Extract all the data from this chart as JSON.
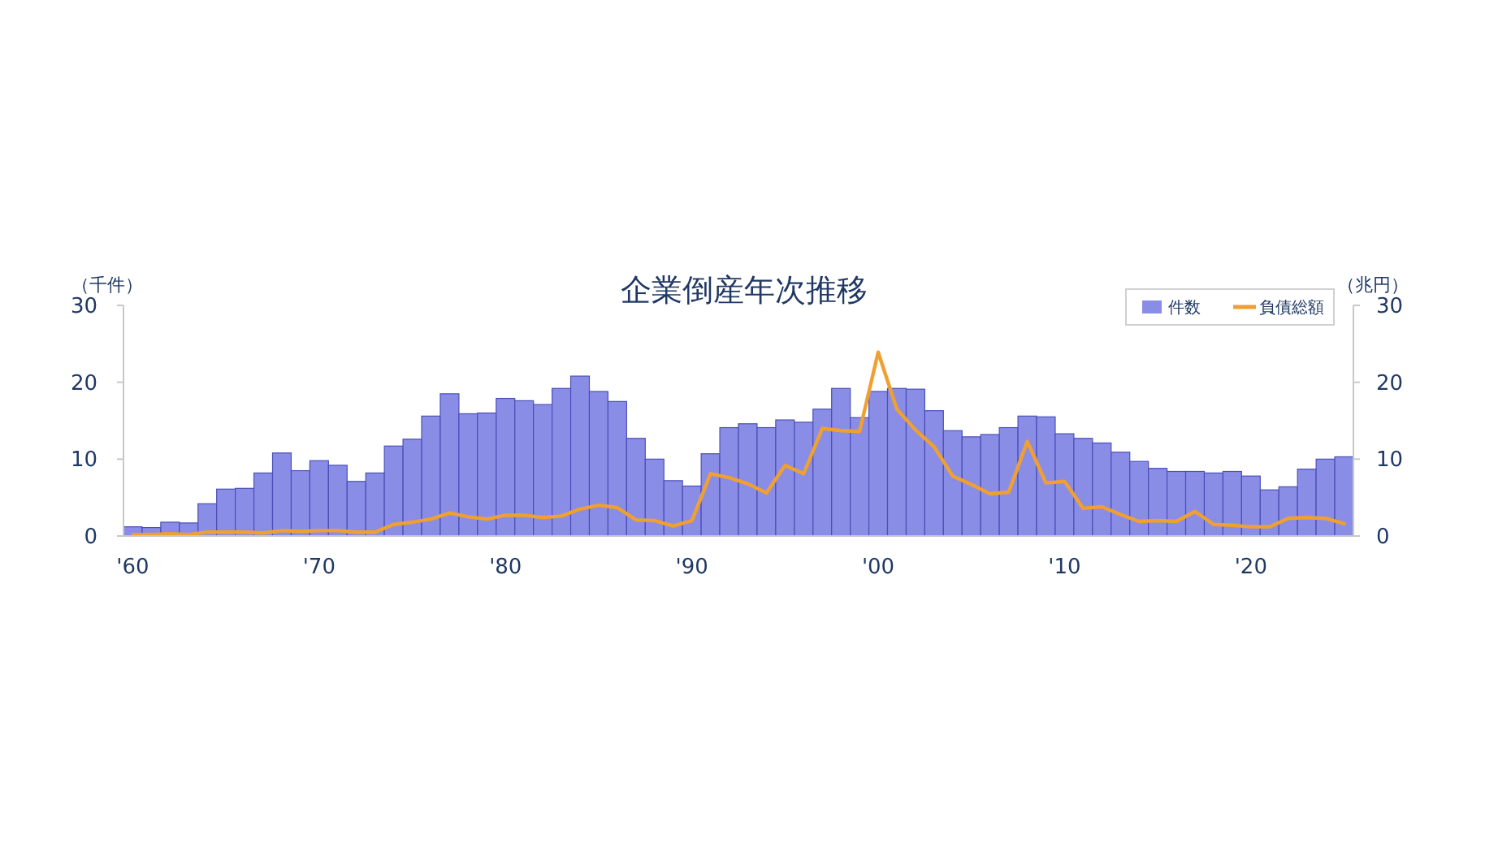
{
  "chart_data": {
    "type": "bar",
    "title": "企業倒産年次推移",
    "ylabel": "（千件）",
    "y2label": "（兆円）",
    "categories": [
      "'60",
      null,
      null,
      null,
      null,
      null,
      null,
      null,
      null,
      null,
      "'70",
      null,
      null,
      null,
      null,
      null,
      null,
      null,
      null,
      null,
      "'80",
      null,
      null,
      null,
      null,
      null,
      null,
      null,
      null,
      null,
      "'90",
      null,
      null,
      null,
      null,
      null,
      null,
      null,
      null,
      null,
      "'00",
      null,
      null,
      null,
      null,
      null,
      null,
      null,
      null,
      null,
      "'10",
      null,
      null,
      null,
      null,
      null,
      null,
      null,
      null,
      null,
      "'20",
      null,
      null,
      null,
      null,
      null
    ],
    "series": [
      {
        "name": "件数",
        "color": "#8a8de6",
        "values": [
          1.2,
          1.1,
          1.8,
          1.7,
          4.2,
          6.1,
          6.2,
          8.2,
          10.8,
          8.5,
          9.8,
          9.2,
          7.1,
          8.2,
          11.7,
          12.6,
          15.6,
          18.5,
          15.9,
          16.0,
          17.9,
          17.6,
          17.1,
          19.2,
          20.8,
          18.8,
          17.5,
          12.7,
          10.0,
          7.2,
          6.5,
          10.7,
          14.1,
          14.6,
          14.1,
          15.1,
          14.8,
          16.5,
          19.2,
          15.4,
          18.8,
          19.2,
          19.1,
          16.3,
          13.7,
          12.9,
          13.2,
          14.1,
          15.6,
          15.5,
          13.3,
          12.7,
          12.1,
          10.9,
          9.7,
          8.8,
          8.4,
          8.4,
          8.2,
          8.4,
          7.8,
          6.0,
          6.4,
          8.7,
          10.0,
          10.3
        ]
      },
      {
        "name": "負債総額",
        "type": "line",
        "axis": "y2",
        "color": "#f0a030",
        "values": [
          0.2,
          0.2,
          0.3,
          0.2,
          0.5,
          0.5,
          0.5,
          0.4,
          0.7,
          0.6,
          0.7,
          0.7,
          0.5,
          0.5,
          1.5,
          1.8,
          2.2,
          3.0,
          2.5,
          2.2,
          2.7,
          2.7,
          2.4,
          2.6,
          3.5,
          4.0,
          3.7,
          2.1,
          2.0,
          1.3,
          2.0,
          8.1,
          7.6,
          6.8,
          5.6,
          9.2,
          8.1,
          14.0,
          13.7,
          13.6,
          23.9,
          16.5,
          13.8,
          11.6,
          7.8,
          6.7,
          5.5,
          5.7,
          12.3,
          6.9,
          7.1,
          3.6,
          3.8,
          2.8,
          1.9,
          2.0,
          1.9,
          3.2,
          1.5,
          1.4,
          1.2,
          1.2,
          2.3,
          2.4,
          2.3,
          1.6
        ]
      }
    ],
    "ylim": [
      0,
      30
    ],
    "yticks": [
      0,
      10,
      20,
      30
    ],
    "y2lim": [
      0,
      30
    ],
    "y2ticks": [
      0,
      10,
      20,
      30
    ],
    "grid": false,
    "legend": "top right"
  }
}
